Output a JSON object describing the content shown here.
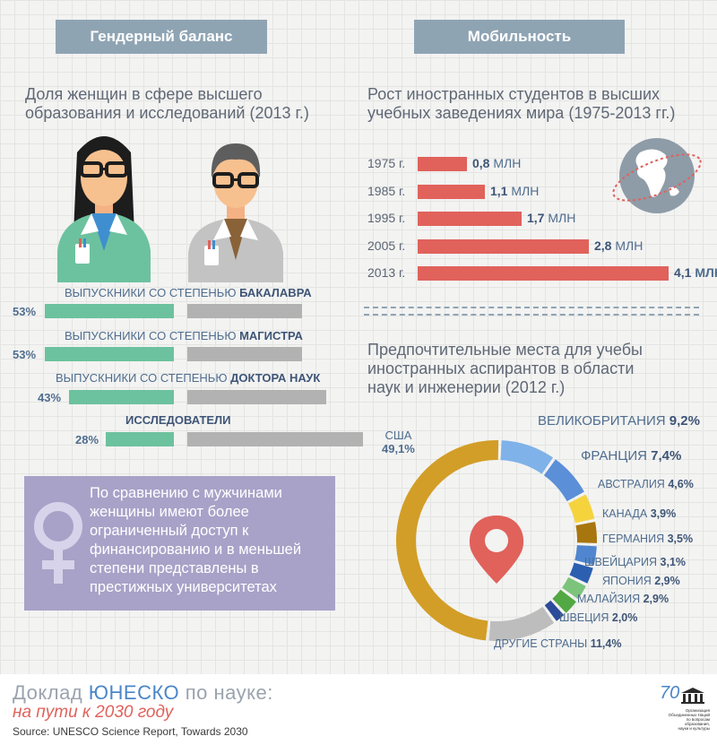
{
  "tabs": {
    "left": "Гендерный баланс",
    "right": "Мобильность"
  },
  "gender": {
    "subtitle_line1": "Доля женщин в сфере высшего",
    "subtitle_line2": "образования и исследований (2013 г.)",
    "rows": [
      {
        "label_prefix": "ВЫПУСКНИКИ СО СТЕПЕНЬЮ ",
        "label_bold": "БАКАЛАВРА",
        "pct_label": "53%",
        "women_share": 0.53
      },
      {
        "label_prefix": "ВЫПУСКНИКИ СО СТЕПЕНЬЮ ",
        "label_bold": "МАГИСТРА",
        "pct_label": "53%",
        "women_share": 0.53
      },
      {
        "label_prefix": "ВЫПУСКНИКИ СО СТЕПЕНЬЮ ",
        "label_bold": "ДОКТОРА НАУК",
        "pct_label": "43%",
        "women_share": 0.43
      },
      {
        "label_prefix": "",
        "label_bold": "ИССЛЕДОВАТЕЛИ",
        "pct_label": "28%",
        "women_share": 0.28
      }
    ],
    "note": [
      "По сравнению с мужчинами",
      "женщины имеют более",
      "ограниченный доступ к",
      "финансированию и в меньшей",
      "степени представлены в",
      "престижных университетах"
    ]
  },
  "mobility": {
    "subtitle_line1": "Рост иностранных студентов в высших",
    "subtitle_line2": "учебных заведениях мира (1975-2013 гг.)",
    "unit": "МЛН"
  },
  "destinations": {
    "subtitle_line1": "Предпочтительные места для учебы",
    "subtitle_line2": "иностранных аспирантов в области",
    "subtitle_line3": "наук и инженерии (2012 г.)"
  },
  "footer": {
    "title_part1": "Доклад ",
    "title_part2": "ЮНЕСКО",
    "title_part3": " по науке:",
    "subtitle": "на пути к 2030 году",
    "source": "Source: UNESCO Science Report, Towards 2030",
    "logo_number": "70",
    "logo_text": [
      "Организация",
      "Объединенных Наций",
      "по вопросам образования,",
      "науки и культуры"
    ]
  },
  "colors": {
    "tab": "#8fa4b3",
    "women": "#6cc29e",
    "men": "#b2b2b2",
    "mobility_bar": "#e0625b",
    "note_box": "#a8a2c8",
    "pin": "#e0625b",
    "brand": "#4a86c8",
    "accent": "#e0625b"
  },
  "icons": {
    "female_scientist": "woman-scientist-icon",
    "male_scientist": "man-scientist-icon",
    "globe": "globe-icon",
    "pin": "location-pin-icon",
    "female_symbol": "female-symbol-icon"
  },
  "chart_data": [
    {
      "type": "bar",
      "orientation": "horizontal",
      "categories": [
        "1975 г.",
        "1985 г.",
        "1995 г.",
        "2005 г.",
        "2013 г."
      ],
      "values": [
        0.8,
        1.1,
        1.7,
        2.8,
        4.1
      ],
      "value_labels": [
        "0,8",
        "1,1",
        "1,7",
        "2,8",
        "4,1"
      ],
      "unit": "МЛН",
      "xlim": [
        0,
        4.1
      ]
    },
    {
      "type": "pie",
      "style": "donut",
      "labels": [
        "США",
        "ВЕЛИКОБРИТАНИЯ",
        "ФРАНЦИЯ",
        "АВСТРАЛИЯ",
        "КАНАДА",
        "ГЕРМАНИЯ",
        "ШВЕЙЦАРИЯ",
        "ЯПОНИЯ",
        "МАЛАЙЗИЯ",
        "ШВЕЦИЯ",
        "ДРУГИЕ СТРАНЫ"
      ],
      "values": [
        49.1,
        9.2,
        7.4,
        4.6,
        3.9,
        3.5,
        3.1,
        2.9,
        2.9,
        2.0,
        11.4
      ],
      "value_labels": [
        "49,1%",
        "9,2%",
        "7,4%",
        "4,6%",
        "3,9%",
        "3,5%",
        "3,1%",
        "2,9%",
        "2,9%",
        "2,0%",
        "11,4%"
      ],
      "colors": [
        "#d29e27",
        "#7fb2e8",
        "#5b8fd8",
        "#f5d33d",
        "#a8760f",
        "#4f86cf",
        "#2c5fb0",
        "#7cc47b",
        "#52a842",
        "#2c4b99",
        "#bdbdbd"
      ]
    }
  ]
}
